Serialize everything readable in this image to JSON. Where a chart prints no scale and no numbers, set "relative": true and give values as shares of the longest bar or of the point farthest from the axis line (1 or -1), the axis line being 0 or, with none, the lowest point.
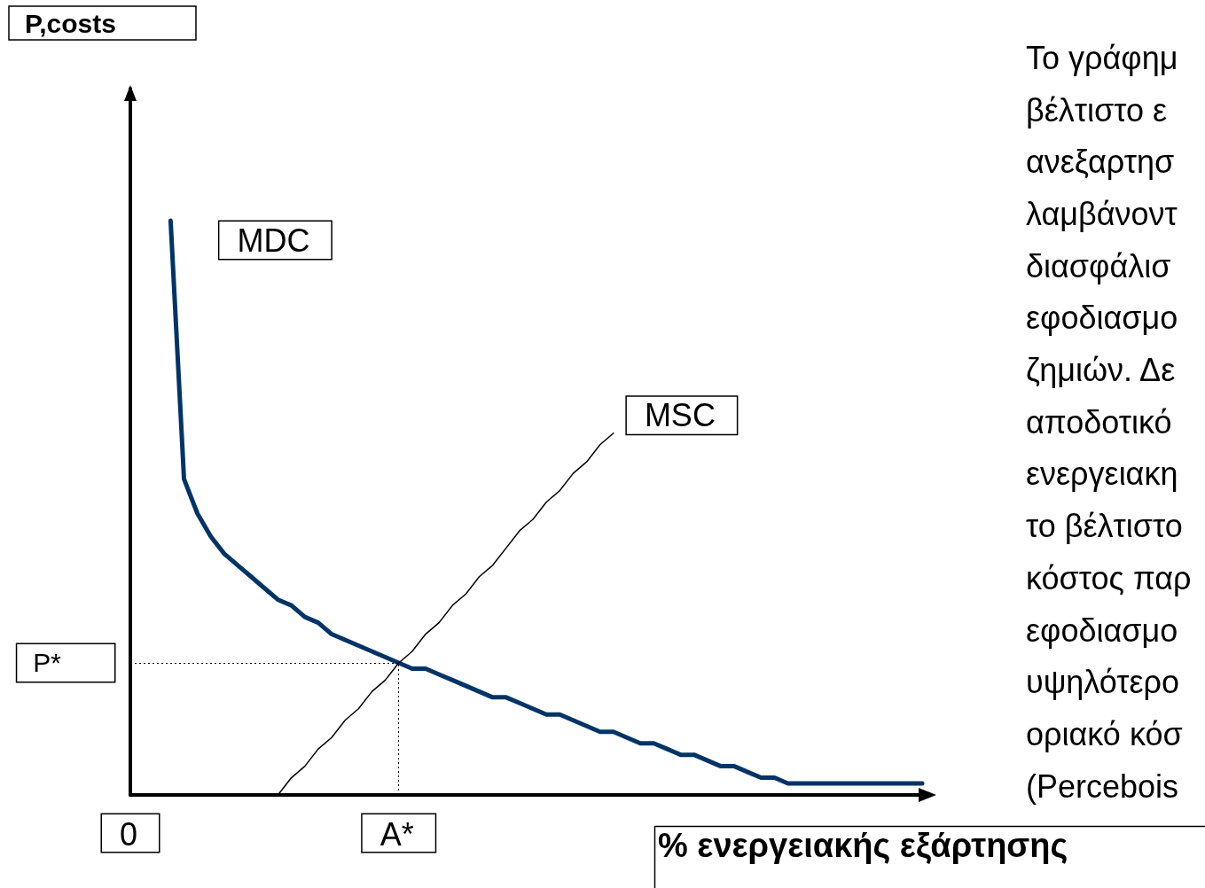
{
  "chart_data": {
    "type": "line",
    "relative": true,
    "title": "P,costs",
    "xlabel": "% ενεργειακής εξάρτησης",
    "categories": [
      "0",
      null,
      null,
      null,
      null,
      null,
      null,
      null,
      null,
      null,
      null,
      null,
      null,
      null,
      null,
      null,
      null,
      null,
      null,
      null,
      "A*",
      null,
      null,
      null,
      null,
      null,
      null,
      null,
      null,
      null,
      null,
      null,
      null,
      null,
      null,
      null,
      null,
      null,
      null,
      null,
      null,
      null,
      null,
      null,
      null,
      null,
      null,
      null,
      null,
      null,
      null,
      null,
      null,
      null,
      null,
      null,
      null,
      null,
      null,
      null
    ],
    "series": [
      {
        "name": "MDC",
        "color": "#003466",
        "values": [
          null,
          null,
          null,
          1.0,
          0.55,
          0.49,
          0.45,
          0.42,
          0.4,
          0.38,
          0.36,
          0.34,
          0.33,
          0.31,
          0.3,
          0.28,
          0.27,
          0.26,
          0.25,
          0.24,
          0.23,
          0.22,
          0.22,
          0.21,
          0.2,
          0.19,
          0.18,
          0.17,
          0.17,
          0.16,
          0.15,
          0.14,
          0.14,
          0.13,
          0.12,
          0.11,
          0.11,
          0.1,
          0.09,
          0.09,
          0.08,
          0.07,
          0.07,
          0.06,
          0.05,
          0.05,
          0.04,
          0.03,
          0.03,
          0.02,
          0.02,
          0.02,
          0.02,
          0.02,
          0.02,
          0.02,
          0.02,
          0.02,
          0.02,
          0.02
        ]
      },
      {
        "name": "MSC",
        "color": "#000000",
        "values": [
          null,
          null,
          null,
          null,
          null,
          null,
          null,
          null,
          null,
          null,
          null,
          0,
          0.03,
          0.05,
          0.08,
          0.1,
          0.13,
          0.15,
          0.18,
          0.2,
          0.23,
          0.25,
          0.28,
          0.3,
          0.33,
          0.35,
          0.38,
          0.4,
          0.43,
          0.46,
          0.48,
          0.51,
          0.53,
          0.56,
          0.58,
          0.61,
          0.63,
          null,
          null,
          null,
          null,
          null,
          null,
          null,
          null,
          null,
          null,
          null,
          null,
          null,
          null,
          null,
          null,
          null,
          null,
          null,
          null,
          null,
          null,
          null
        ]
      }
    ],
    "ref_lines": [
      {
        "axis": "y",
        "value": 0.23,
        "label": "P*",
        "line_style": "dotted"
      },
      {
        "axis": "x",
        "value": "A*",
        "line_style": "dotted"
      }
    ],
    "annotations": [
      "Το γράφημ\nβέλτιστο ε\nανεξαρτησ\nλαμβάνοντ\nδιασφάλισ\nεφοδιασμο\nζημιών. Δε\nαποδοτικό\nενεργειακη\nτο βέλτιστο\nκόστος παρ\nεφοδιασμο\nυψηλότερο\nοριακό κόσ\n(Percebois"
    ],
    "legend": false,
    "grid": false,
    "marker": "none",
    "line_style": "solid"
  }
}
